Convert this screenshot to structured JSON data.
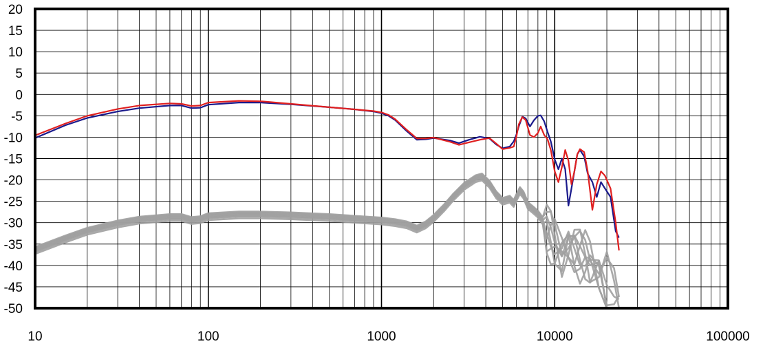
{
  "chart_data": {
    "type": "line",
    "title": "",
    "xlabel": "",
    "ylabel": "",
    "x_scale": "log",
    "xlim": [
      10,
      100000
    ],
    "ylim": [
      -50,
      20
    ],
    "grid": true,
    "legend": "none",
    "x_ticks": [
      {
        "value": 10,
        "label": "10"
      },
      {
        "value": 100,
        "label": "100"
      },
      {
        "value": 1000,
        "label": "1000"
      },
      {
        "value": 10000,
        "label": "10000"
      },
      {
        "value": 100000,
        "label": "100000"
      }
    ],
    "y_ticks": [
      {
        "value": 20,
        "label": "20"
      },
      {
        "value": 15,
        "label": "15"
      },
      {
        "value": 10,
        "label": "10"
      },
      {
        "value": 5,
        "label": "5"
      },
      {
        "value": 0,
        "label": "0"
      },
      {
        "value": -5,
        "label": "-5"
      },
      {
        "value": -10,
        "label": "-10"
      },
      {
        "value": -15,
        "label": "-15"
      },
      {
        "value": -20,
        "label": "-20"
      },
      {
        "value": -25,
        "label": "-25"
      },
      {
        "value": -30,
        "label": "-30"
      },
      {
        "value": -35,
        "label": "-35"
      },
      {
        "value": -40,
        "label": "-40"
      },
      {
        "value": -45,
        "label": "-45"
      },
      {
        "value": -50,
        "label": "-50"
      }
    ],
    "series": [
      {
        "color": "#1a1a8c",
        "points": [
          [
            10,
            -10.2
          ],
          [
            15,
            -7.2
          ],
          [
            20,
            -5.5
          ],
          [
            30,
            -4.0
          ],
          [
            40,
            -3.2
          ],
          [
            60,
            -2.6
          ],
          [
            70,
            -2.6
          ],
          [
            80,
            -3.2
          ],
          [
            90,
            -3.1
          ],
          [
            100,
            -2.4
          ],
          [
            150,
            -1.9
          ],
          [
            200,
            -1.9
          ],
          [
            300,
            -2.3
          ],
          [
            500,
            -3.0
          ],
          [
            700,
            -3.5
          ],
          [
            900,
            -4.0
          ],
          [
            1000,
            -4.4
          ],
          [
            1100,
            -5.0
          ],
          [
            1200,
            -6.0
          ],
          [
            1400,
            -8.6
          ],
          [
            1600,
            -10.6
          ],
          [
            1800,
            -10.5
          ],
          [
            2000,
            -10.2
          ],
          [
            2500,
            -10.8
          ],
          [
            2800,
            -11.4
          ],
          [
            3200,
            -10.6
          ],
          [
            3700,
            -9.9
          ],
          [
            4200,
            -10.3
          ],
          [
            4600,
            -11.7
          ],
          [
            5000,
            -12.6
          ],
          [
            5500,
            -12.2
          ],
          [
            5800,
            -11.0
          ],
          [
            6000,
            -9.5
          ],
          [
            6200,
            -7.5
          ],
          [
            6500,
            -5.2
          ],
          [
            6800,
            -5.6
          ],
          [
            7200,
            -7.5
          ],
          [
            7600,
            -6.0
          ],
          [
            8000,
            -5.0
          ],
          [
            8300,
            -4.9
          ],
          [
            8700,
            -6.3
          ],
          [
            9100,
            -8.8
          ],
          [
            9500,
            -11.0
          ],
          [
            10000,
            -15.2
          ],
          [
            10500,
            -17.5
          ],
          [
            11000,
            -15.0
          ],
          [
            11500,
            -17.5
          ],
          [
            12000,
            -26.0
          ],
          [
            12500,
            -22.0
          ],
          [
            13000,
            -18.0
          ],
          [
            13500,
            -14.0
          ],
          [
            14000,
            -13.0
          ],
          [
            14800,
            -14.5
          ],
          [
            15500,
            -18.5
          ],
          [
            16500,
            -20.5
          ],
          [
            17500,
            -24.0
          ],
          [
            18500,
            -20.5
          ],
          [
            19500,
            -22.0
          ],
          [
            21000,
            -24.0
          ],
          [
            22500,
            -32.0
          ],
          [
            23500,
            -33.5
          ]
        ]
      },
      {
        "color": "#e02020",
        "points": [
          [
            10,
            -9.6
          ],
          [
            15,
            -6.8
          ],
          [
            20,
            -5.0
          ],
          [
            30,
            -3.4
          ],
          [
            40,
            -2.6
          ],
          [
            60,
            -2.1
          ],
          [
            70,
            -2.2
          ],
          [
            80,
            -2.7
          ],
          [
            90,
            -2.6
          ],
          [
            100,
            -1.9
          ],
          [
            150,
            -1.5
          ],
          [
            200,
            -1.6
          ],
          [
            300,
            -2.2
          ],
          [
            500,
            -3.0
          ],
          [
            700,
            -3.5
          ],
          [
            900,
            -3.9
          ],
          [
            1000,
            -4.2
          ],
          [
            1100,
            -4.8
          ],
          [
            1200,
            -5.8
          ],
          [
            1400,
            -8.3
          ],
          [
            1600,
            -10.3
          ],
          [
            1800,
            -10.3
          ],
          [
            2000,
            -10.1
          ],
          [
            2500,
            -11.1
          ],
          [
            2800,
            -11.8
          ],
          [
            3200,
            -11.2
          ],
          [
            3700,
            -10.6
          ],
          [
            4200,
            -10.2
          ],
          [
            4600,
            -11.5
          ],
          [
            5000,
            -12.8
          ],
          [
            5500,
            -12.5
          ],
          [
            5800,
            -12.2
          ],
          [
            6000,
            -10.0
          ],
          [
            6200,
            -7.0
          ],
          [
            6500,
            -5.3
          ],
          [
            6800,
            -6.0
          ],
          [
            7200,
            -9.5
          ],
          [
            7600,
            -10.0
          ],
          [
            8000,
            -9.0
          ],
          [
            8300,
            -7.5
          ],
          [
            8700,
            -9.5
          ],
          [
            9100,
            -10.5
          ],
          [
            9500,
            -13.0
          ],
          [
            10000,
            -18.0
          ],
          [
            10500,
            -20.5
          ],
          [
            11000,
            -17.0
          ],
          [
            11500,
            -13.0
          ],
          [
            12000,
            -15.5
          ],
          [
            12500,
            -21.0
          ],
          [
            13000,
            -18.0
          ],
          [
            13500,
            -14.0
          ],
          [
            14000,
            -12.8
          ],
          [
            14800,
            -13.5
          ],
          [
            15500,
            -18.0
          ],
          [
            16500,
            -27.0
          ],
          [
            17500,
            -21.0
          ],
          [
            18500,
            -18.0
          ],
          [
            19500,
            -19.0
          ],
          [
            21000,
            -22.0
          ],
          [
            22500,
            -30.0
          ],
          [
            23500,
            -36.5
          ]
        ]
      }
    ],
    "gray_series": {
      "color": "#a0a0a0",
      "base_points": [
        [
          10,
          -36.5
        ],
        [
          15,
          -33.8
        ],
        [
          20,
          -32.0
        ],
        [
          30,
          -30.3
        ],
        [
          40,
          -29.4
        ],
        [
          60,
          -28.8
        ],
        [
          70,
          -28.8
        ],
        [
          80,
          -29.5
        ],
        [
          90,
          -29.3
        ],
        [
          100,
          -28.6
        ],
        [
          150,
          -28.2
        ],
        [
          200,
          -28.2
        ],
        [
          300,
          -28.4
        ],
        [
          500,
          -28.8
        ],
        [
          700,
          -29.2
        ],
        [
          1000,
          -29.6
        ],
        [
          1200,
          -30.0
        ],
        [
          1400,
          -30.5
        ],
        [
          1600,
          -31.5
        ],
        [
          1800,
          -30.5
        ],
        [
          2000,
          -29.0
        ],
        [
          2300,
          -26.5
        ],
        [
          2600,
          -24.0
        ],
        [
          3000,
          -21.5
        ],
        [
          3500,
          -19.7
        ],
        [
          3800,
          -19.3
        ],
        [
          4200,
          -21.0
        ],
        [
          4600,
          -23.5
        ],
        [
          5000,
          -25.0
        ],
        [
          5500,
          -24.5
        ],
        [
          5800,
          -25.5
        ],
        [
          6000,
          -24.2
        ],
        [
          6300,
          -22.5
        ],
        [
          6600,
          -23.5
        ],
        [
          7000,
          -26.0
        ],
        [
          7500,
          -27.0
        ],
        [
          8000,
          -28.0
        ],
        [
          8500,
          -29.5
        ],
        [
          9000,
          -30.5
        ],
        [
          9500,
          -32.0
        ],
        [
          10000,
          -34.0
        ],
        [
          11000,
          -36.0
        ],
        [
          12000,
          -33.5
        ],
        [
          13000,
          -35.0
        ],
        [
          14000,
          -36.5
        ],
        [
          15000,
          -37.0
        ],
        [
          16000,
          -38.0
        ],
        [
          18000,
          -40.0
        ],
        [
          20000,
          -42.0
        ],
        [
          22000,
          -44.0
        ],
        [
          23500,
          -47.0
        ]
      ]
    }
  }
}
